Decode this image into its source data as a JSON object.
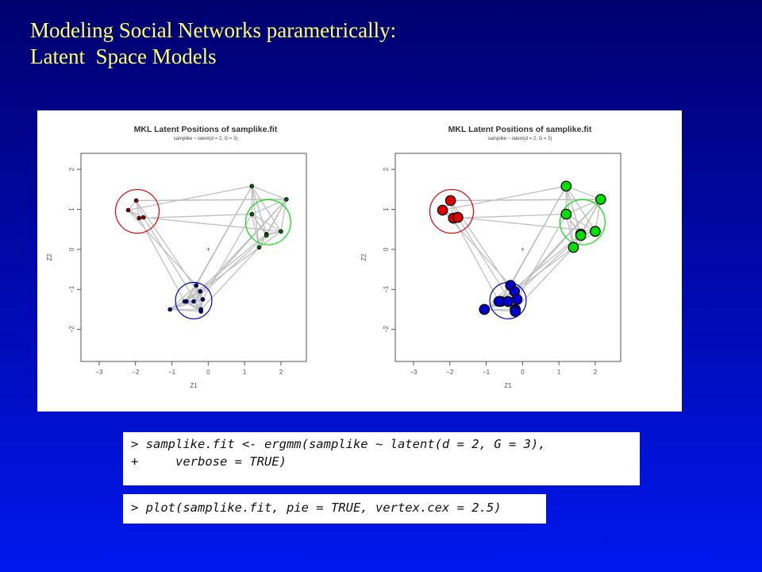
{
  "slide": {
    "title_line1": "Modeling Social Networks parametrically:",
    "title_line2": "Latent  Space Models"
  },
  "code": {
    "line1": "> samplike.fit <- ergmm(samplike ~ latent(d = 2, G = 3),",
    "line2": "+     verbose = TRUE)",
    "line3": "> plot(samplike.fit, pie = TRUE, vertex.cex = 2.5)"
  },
  "colors": {
    "title": "#ffff66",
    "cluster_red": "#e00000",
    "cluster_green": "#00e000",
    "cluster_blue": "#0000cc",
    "edge": "#c0c0c0"
  },
  "chart_data": [
    {
      "type": "scatter",
      "title": "MKL Latent Positions of samplike.fit",
      "subtitle": "samplike ~ latent(d = 2, G = 3)",
      "xlabel": "Z1",
      "ylabel": "Z2",
      "xlim": [
        -3.5,
        2.7
      ],
      "ylim": [
        -2.8,
        2.4
      ],
      "xticks": [
        -3,
        -2,
        -1,
        0,
        1,
        2
      ],
      "yticks": [
        -2,
        -1,
        0,
        1,
        2
      ],
      "grid": false,
      "vertex_size": "small",
      "clusters": [
        {
          "color": "red",
          "center": [
            -1.95,
            0.95
          ],
          "radius": 0.6,
          "points": [
            [
              -2.2,
              0.98
            ],
            [
              -1.98,
              1.22
            ],
            [
              -1.9,
              0.78
            ],
            [
              -1.78,
              0.8
            ]
          ]
        },
        {
          "color": "green",
          "center": [
            1.65,
            0.68
          ],
          "radius": 0.62,
          "points": [
            [
              1.2,
              1.58
            ],
            [
              2.15,
              1.25
            ],
            [
              1.2,
              0.88
            ],
            [
              2.0,
              0.45
            ],
            [
              1.6,
              0.38
            ],
            [
              1.6,
              0.35
            ],
            [
              1.4,
              0.05
            ]
          ]
        },
        {
          "color": "blue",
          "center": [
            -0.4,
            -1.28
          ],
          "radius": 0.5,
          "points": [
            [
              -0.33,
              -0.9
            ],
            [
              -0.22,
              -1.05
            ],
            [
              -0.15,
              -1.25
            ],
            [
              -0.6,
              -1.3
            ],
            [
              -0.65,
              -1.3
            ],
            [
              -0.4,
              -1.3
            ],
            [
              -0.2,
              -1.5
            ],
            [
              -0.2,
              -1.55
            ],
            [
              -1.05,
              -1.5
            ]
          ]
        }
      ],
      "center_marker": [
        0,
        0
      ]
    },
    {
      "type": "scatter",
      "title": "MKL Latent Positions of samplike.fit",
      "subtitle": "samplike ~ latent(d = 2, G = 3)",
      "xlabel": "Z1",
      "ylabel": "Z2",
      "xlim": [
        -3.5,
        2.7
      ],
      "ylim": [
        -2.8,
        2.4
      ],
      "xticks": [
        -3,
        -2,
        -1,
        0,
        1,
        2
      ],
      "yticks": [
        -2,
        -1,
        0,
        1,
        2
      ],
      "grid": false,
      "vertex_size": "large",
      "clusters": [
        {
          "color": "red",
          "center": [
            -1.95,
            0.95
          ],
          "radius": 0.6,
          "points": [
            [
              -2.2,
              0.98
            ],
            [
              -1.98,
              1.22
            ],
            [
              -1.9,
              0.78
            ],
            [
              -1.78,
              0.8
            ]
          ]
        },
        {
          "color": "green",
          "center": [
            1.65,
            0.68
          ],
          "radius": 0.62,
          "points": [
            [
              1.2,
              1.58
            ],
            [
              2.15,
              1.25
            ],
            [
              1.2,
              0.88
            ],
            [
              2.0,
              0.45
            ],
            [
              1.6,
              0.38
            ],
            [
              1.6,
              0.35
            ],
            [
              1.4,
              0.05
            ]
          ]
        },
        {
          "color": "blue",
          "center": [
            -0.4,
            -1.28
          ],
          "radius": 0.5,
          "points": [
            [
              -0.33,
              -0.9
            ],
            [
              -0.22,
              -1.05
            ],
            [
              -0.15,
              -1.25
            ],
            [
              -0.6,
              -1.3
            ],
            [
              -0.65,
              -1.3
            ],
            [
              -0.4,
              -1.3
            ],
            [
              -0.2,
              -1.5
            ],
            [
              -0.2,
              -1.55
            ],
            [
              -1.05,
              -1.5
            ]
          ]
        }
      ],
      "center_marker": [
        0,
        0
      ]
    }
  ]
}
